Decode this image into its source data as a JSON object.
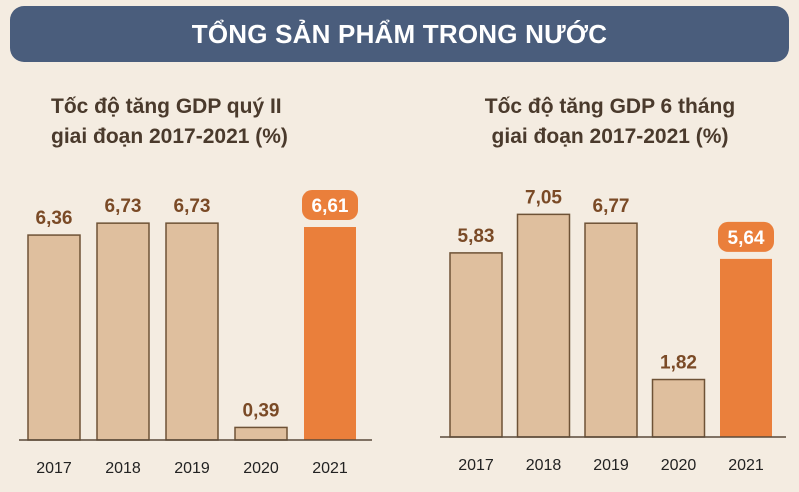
{
  "header": {
    "title": "TỔNG SẢN PHẨM TRONG NƯỚC"
  },
  "colors": {
    "banner": "#4a5d7c",
    "bar": "#dfbf9e",
    "bar_highlight": "#ea7f3b",
    "bar_border": "#6e5236",
    "label": "#7a4a26"
  },
  "chart_data": [
    {
      "type": "bar",
      "title_lines": [
        "Tốc độ tăng GDP quý II",
        "giai đoạn 2017-2021 (%)"
      ],
      "categories": [
        "2017",
        "2018",
        "2019",
        "2020",
        "2021"
      ],
      "values": [
        6.36,
        6.73,
        6.73,
        0.39,
        6.61
      ],
      "value_labels": [
        "6,36",
        "6,73",
        "6,73",
        "0,39",
        "6,61"
      ],
      "highlight_index": 4,
      "ylim": [
        0,
        7.2
      ],
      "xlabel": "",
      "ylabel": ""
    },
    {
      "type": "bar",
      "title_lines": [
        "Tốc độ tăng GDP 6 tháng",
        "giai đoạn 2017-2021 (%)"
      ],
      "categories": [
        "2017",
        "2018",
        "2019",
        "2020",
        "2021"
      ],
      "values": [
        5.83,
        7.05,
        6.77,
        1.82,
        5.64
      ],
      "value_labels": [
        "5,83",
        "7,05",
        "6,77",
        "1,82",
        "5,64"
      ],
      "highlight_index": 4,
      "ylim": [
        0,
        7.6
      ],
      "xlabel": "",
      "ylabel": ""
    }
  ]
}
